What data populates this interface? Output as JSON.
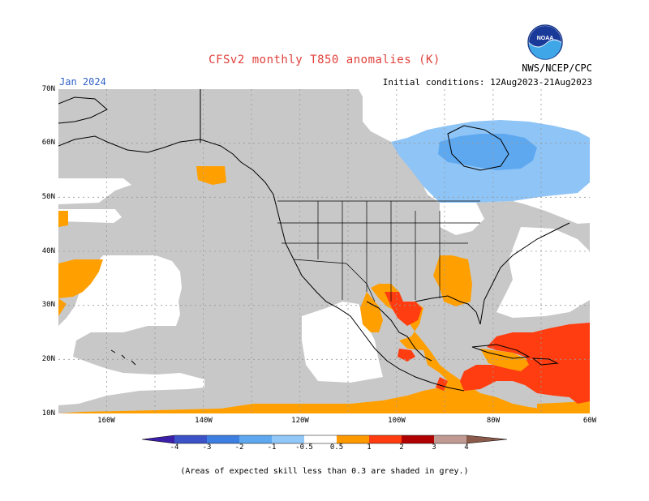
{
  "title": "CFSv2 monthly T850 anomalies (K)",
  "agency": "NWS/NCEP/CPC",
  "month": "Jan 2024",
  "initial_conditions": "Initial conditions: 12Aug2023-21Aug2023",
  "logo_text": "NOAA",
  "note": "(Areas of expected skill less than 0.3 are shaded in grey.)",
  "lat_labels": [
    "70N",
    "60N",
    "50N",
    "40N",
    "30N",
    "20N",
    "10N"
  ],
  "lon_labels": [
    "160W",
    "140W",
    "120W",
    "100W",
    "80W",
    "60W"
  ],
  "colorbar": {
    "labels": [
      "-4",
      "-3",
      "-2",
      "-1",
      "-0.5",
      "0.5",
      "1",
      "2",
      "3",
      "4"
    ],
    "colors": [
      "#3b1fa8",
      "#3c52c7",
      "#3d7fe0",
      "#5ea8f0",
      "#91c8f8",
      "#ffffff",
      "#ff9900",
      "#ff3d10",
      "#b00000",
      "#c09a92",
      "#8a5a4a"
    ]
  },
  "colors": {
    "grey_low_skill": "#c8c8c8",
    "light_blue": "#8ec4f6",
    "mid_blue": "#5ea8f0",
    "orange": "#ff9f00",
    "red": "#ff3d10"
  }
}
